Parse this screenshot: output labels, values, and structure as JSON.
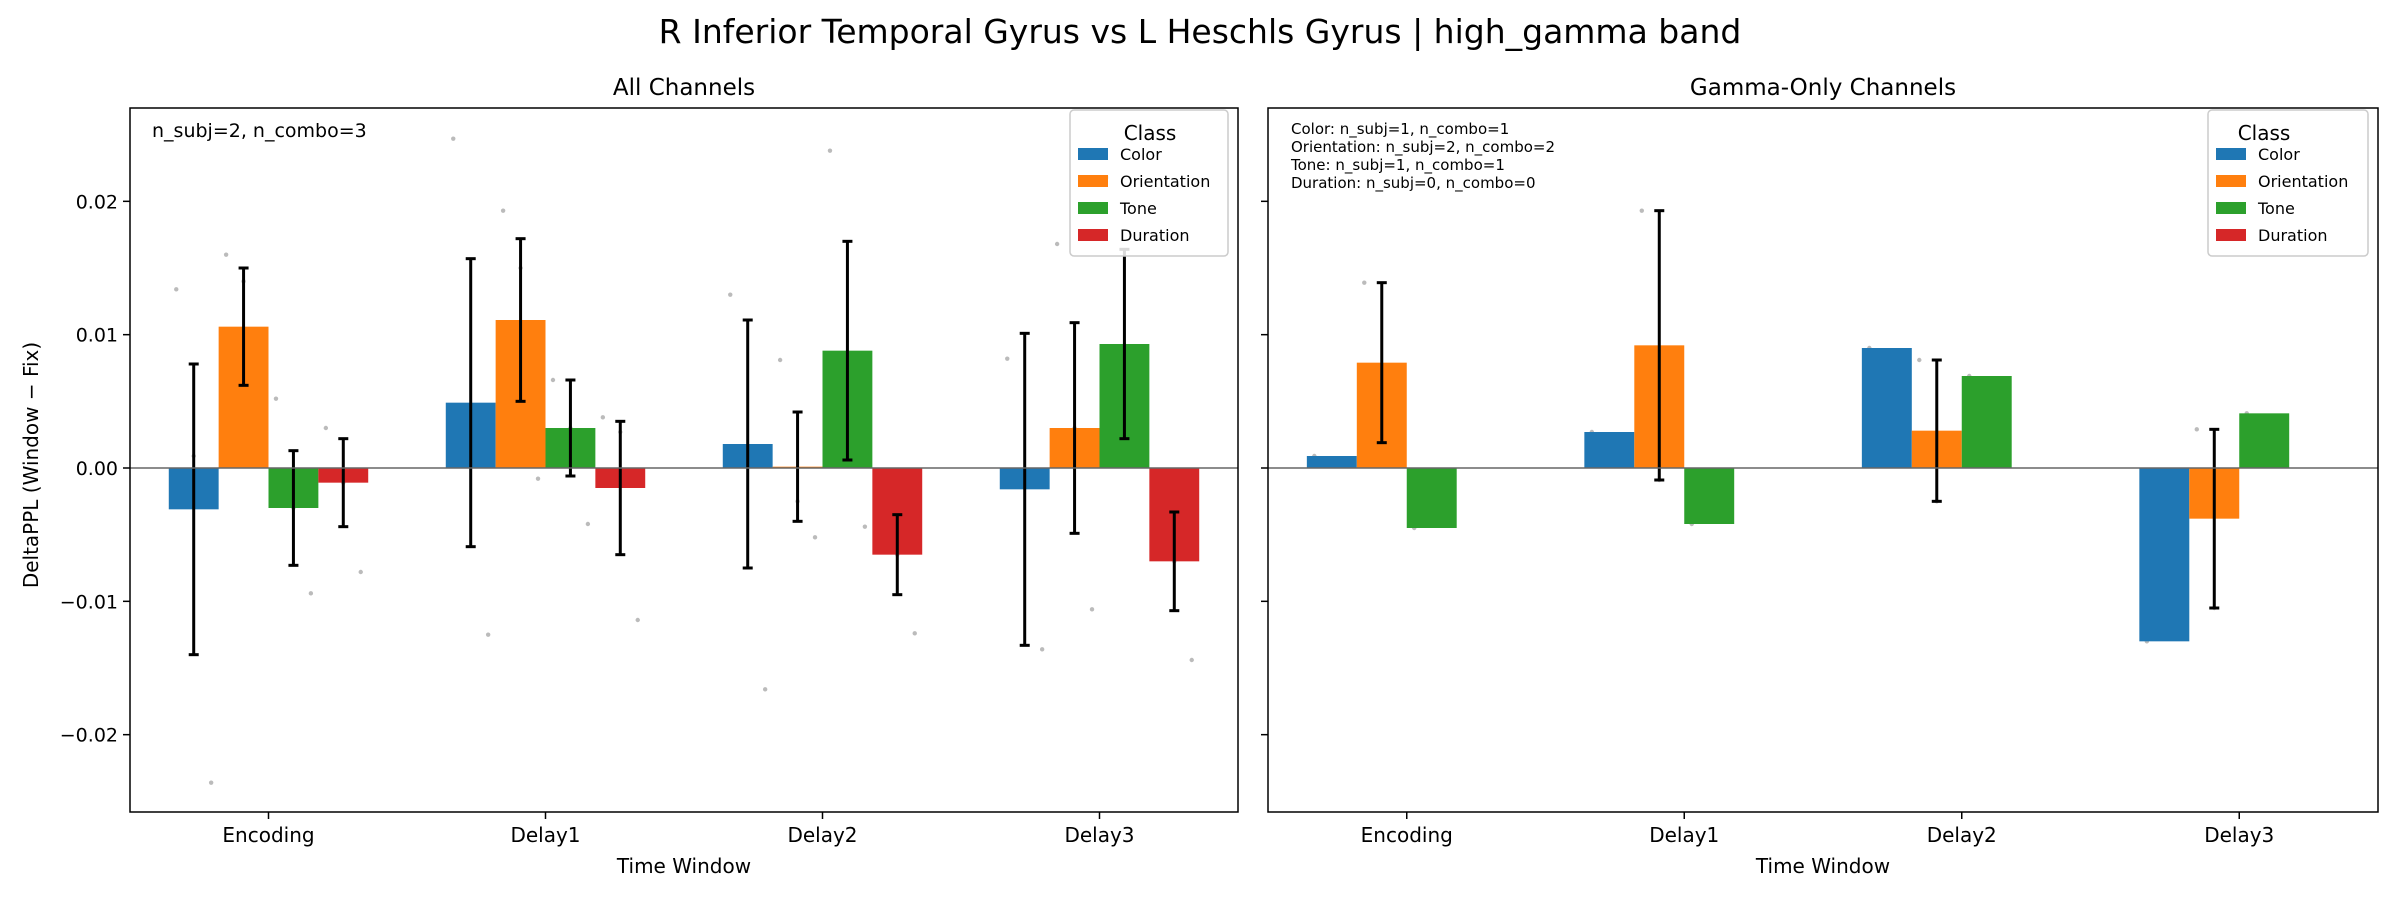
{
  "figure": {
    "suptitle": "R Inferior Temporal Gyrus vs L Heschls Gyrus  |  high_gamma band",
    "ylabel": "DeltaPPL (Window − Fix)"
  },
  "colors": {
    "Color": "#1f77b4",
    "Orientation": "#ff7f0e",
    "Tone": "#2ca02c",
    "Duration": "#d62728",
    "scatter_points": "#bbbbbb",
    "errorbar": "#000000",
    "zero_line": "#666666"
  },
  "chart_data": [
    {
      "type": "bar",
      "title": "All Channels",
      "xlabel": "Time Window",
      "ylabel": "DeltaPPL (Window − Fix)",
      "ylim": [
        -0.0258,
        0.027
      ],
      "yticks": [
        -0.02,
        -0.01,
        0.0,
        0.01,
        0.02
      ],
      "ytick_labels": [
        "−0.02",
        "−0.01",
        "0.00",
        "0.01",
        "0.02"
      ],
      "grid": false,
      "legend": {
        "title": "Class",
        "placement": "top-right"
      },
      "annotation": "n_subj=2, n_combo=3",
      "categories": [
        "Encoding",
        "Delay1",
        "Delay2",
        "Delay3"
      ],
      "series": [
        {
          "name": "Color",
          "values": [
            -0.0031,
            0.0049,
            0.0018,
            -0.0016
          ],
          "errors": [
            0.0109,
            0.0108,
            0.0093,
            0.0117
          ],
          "points": [
            [
              0.0134,
              0.0009,
              -0.0236
            ],
            [
              0.0247,
              0.0028,
              -0.0125
            ],
            [
              0.013,
              0.0011,
              -0.0166
            ],
            [
              0.0082,
              -0.0009,
              -0.0136
            ]
          ]
        },
        {
          "name": "Orientation",
          "values": [
            0.0106,
            0.0111,
            0.0001,
            0.003
          ],
          "errors": [
            0.0044,
            0.0061,
            0.0041,
            0.0079
          ],
          "points": [
            [
              0.016,
              0.014,
              0.0018
            ],
            [
              0.0193,
              0.015,
              -0.0008
            ],
            [
              0.0081,
              -0.0025,
              -0.0052
            ],
            [
              0.0168,
              0.003,
              -0.0106
            ]
          ]
        },
        {
          "name": "Tone",
          "values": [
            -0.003,
            0.003,
            0.0088,
            0.0093
          ],
          "errors": [
            0.0043,
            0.0036,
            0.0082,
            0.0071
          ],
          "points": [
            [
              0.0052,
              -0.003,
              -0.0094
            ],
            [
              0.0066,
              0.003,
              -0.0042
            ],
            [
              0.0238,
              0.005,
              -0.0044
            ],
            [
              0.0218,
              0.0092,
              0.0004
            ]
          ]
        },
        {
          "name": "Duration",
          "values": [
            -0.0011,
            -0.0015,
            -0.0065,
            -0.007
          ],
          "errors": [
            0.0033,
            0.005,
            0.003,
            0.0037
          ],
          "points": [
            [
              0.003,
              -0.0011,
              -0.0078
            ],
            [
              0.0038,
              0.0027,
              -0.0114
            ],
            [
              -0.0026,
              -0.0065,
              -0.0124
            ],
            [
              -0.0022,
              -0.007,
              -0.0144
            ]
          ]
        }
      ]
    },
    {
      "type": "bar",
      "title": "Gamma-Only Channels",
      "xlabel": "Time Window",
      "ylim": [
        -0.0258,
        0.027
      ],
      "yticks": [
        -0.02,
        -0.01,
        0.0,
        0.01,
        0.02
      ],
      "shared_y": true,
      "grid": false,
      "legend": {
        "title": "Class",
        "placement": "top-right"
      },
      "annotation_lines": [
        "Color: n_subj=1, n_combo=1",
        "Orientation: n_subj=2, n_combo=2",
        "Tone: n_subj=1, n_combo=1",
        "Duration: n_subj=0, n_combo=0"
      ],
      "categories": [
        "Encoding",
        "Delay1",
        "Delay2",
        "Delay3"
      ],
      "series": [
        {
          "name": "Color",
          "values": [
            0.0009,
            0.0027,
            0.009,
            -0.013
          ],
          "errors": [
            0,
            0,
            0,
            0
          ],
          "points": [
            [
              0.0009
            ],
            [
              0.0027
            ],
            [
              0.009
            ],
            [
              -0.013
            ]
          ]
        },
        {
          "name": "Orientation",
          "values": [
            0.0079,
            0.0092,
            0.0028,
            -0.0038
          ],
          "errors": [
            0.006,
            0.0101,
            0.0053,
            0.0067
          ],
          "points": [
            [
              0.0139,
              0.0019
            ],
            [
              0.0193,
              -0.0009
            ],
            [
              0.0081,
              -0.0025
            ],
            [
              0.0029,
              -0.0105
            ]
          ]
        },
        {
          "name": "Tone",
          "values": [
            -0.0045,
            -0.0042,
            0.0069,
            0.0041
          ],
          "errors": [
            0,
            0,
            0,
            0
          ],
          "points": [
            [
              -0.0045
            ],
            [
              -0.0042
            ],
            [
              0.0069
            ],
            [
              0.0041
            ]
          ]
        },
        {
          "name": "Duration",
          "values": [
            null,
            null,
            null,
            null
          ],
          "errors": [
            null,
            null,
            null,
            null
          ],
          "points": [
            [],
            [],
            [],
            []
          ]
        }
      ]
    }
  ]
}
